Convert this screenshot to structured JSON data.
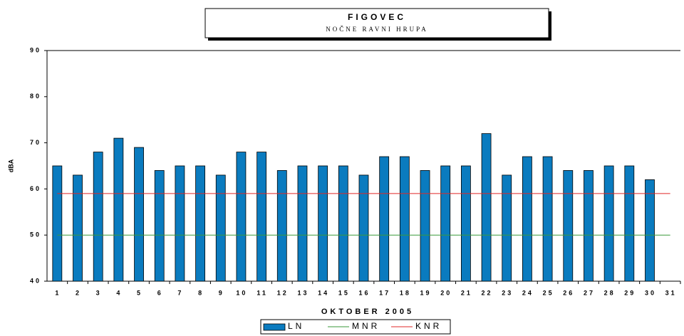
{
  "chart_data": {
    "type": "bar",
    "title": "FIGOVEC",
    "subtitle": "NOČNE RAVNI HRUPA",
    "x_label": "OKTOBER 2005",
    "y_label": "dBA",
    "categories": [
      "1",
      "2",
      "3",
      "4",
      "5",
      "6",
      "7",
      "8",
      "9",
      "10",
      "11",
      "12",
      "13",
      "14",
      "15",
      "16",
      "17",
      "18",
      "19",
      "20",
      "21",
      "22",
      "23",
      "24",
      "25",
      "26",
      "27",
      "28",
      "29",
      "30",
      "31"
    ],
    "series": [
      {
        "name": "LN",
        "color": "#0a7bbf",
        "values": [
          65,
          63,
          68,
          71,
          69,
          64,
          65,
          65,
          63,
          68,
          68,
          64,
          65,
          65,
          65,
          63,
          67,
          67,
          64,
          65,
          65,
          72,
          63,
          67,
          67,
          64,
          64,
          65,
          65,
          62,
          null
        ]
      },
      {
        "name": "MNR",
        "color": "#3a9a3a",
        "values": [
          50,
          50,
          50,
          50,
          50,
          50,
          50,
          50,
          50,
          50,
          50,
          50,
          50,
          50,
          50,
          50,
          50,
          50,
          50,
          50,
          50,
          50,
          50,
          50,
          50,
          50,
          50,
          50,
          50,
          50,
          50
        ]
      },
      {
        "name": "KNR",
        "color": "#e02828",
        "values": [
          59,
          59,
          59,
          59,
          59,
          59,
          59,
          59,
          59,
          59,
          59,
          59,
          59,
          59,
          59,
          59,
          59,
          59,
          59,
          59,
          59,
          59,
          59,
          59,
          59,
          59,
          59,
          59,
          59,
          59,
          59
        ]
      }
    ],
    "ylim": [
      40,
      90
    ],
    "yticks": [
      40,
      50,
      60,
      70,
      80,
      90
    ],
    "legend": "bottom"
  }
}
